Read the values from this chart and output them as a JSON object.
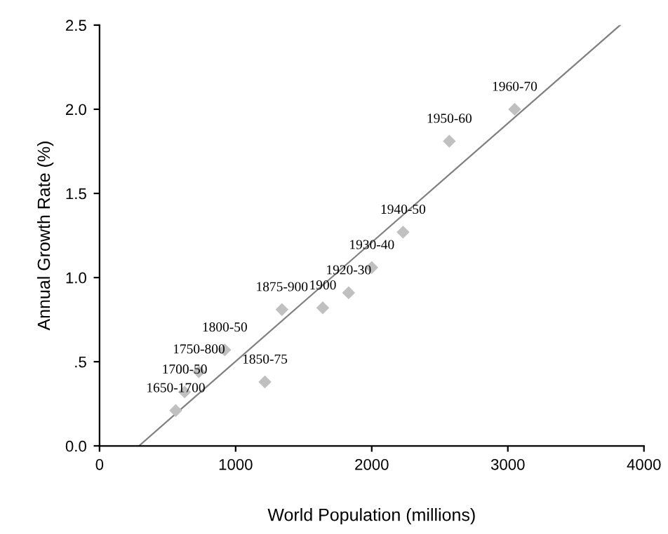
{
  "chart_data": {
    "type": "scatter",
    "xlabel": "World Population (millions)",
    "ylabel": "Annual Growth Rate (%)",
    "xlim": [
      0,
      4000
    ],
    "xticks": [
      0,
      1000,
      2000,
      3000,
      4000
    ],
    "ylim": [
      0,
      2.5
    ],
    "yticks": [
      {
        "value": 0,
        "label": "0.0"
      },
      {
        "value": 0.5,
        "label": ".5"
      },
      {
        "value": 1.0,
        "label": "1.0"
      },
      {
        "value": 1.5,
        "label": "1.5"
      },
      {
        "value": 2.0,
        "label": "2.0"
      },
      {
        "value": 2.5,
        "label": "2.5"
      }
    ],
    "grid": false,
    "series": [
      {
        "color": "#c0c0c0",
        "marker": "diamond",
        "x": [
          560,
          625,
          730,
          920,
          1215,
          1340,
          1640,
          1830,
          2000,
          2230,
          2570,
          3050
        ],
        "values": [
          0.21,
          0.32,
          0.44,
          0.57,
          0.38,
          0.81,
          0.82,
          0.91,
          1.06,
          1.27,
          1.81,
          2.0
        ]
      },
      {
        "type": "line",
        "color": "#808080",
        "marker": "none",
        "line_style": "solid",
        "x": [
          290,
          3825
        ],
        "values": [
          0,
          2.5
        ]
      }
    ],
    "annotations": [
      {
        "text": "1650-1700",
        "x": 560,
        "y": 0.21
      },
      {
        "text": "1700-50",
        "x": 625,
        "y": 0.32
      },
      {
        "text": "1750-800",
        "x": 730,
        "y": 0.44
      },
      {
        "text": "1800-50",
        "x": 920,
        "y": 0.57
      },
      {
        "text": "1850-75",
        "x": 1215,
        "y": 0.38
      },
      {
        "text": "1875-900",
        "x": 1340,
        "y": 0.81
      },
      {
        "text": "1900",
        "x": 1640,
        "y": 0.82
      },
      {
        "text": "1920-30",
        "x": 1830,
        "y": 0.91
      },
      {
        "text": "1930-40",
        "x": 2000,
        "y": 1.06
      },
      {
        "text": "1940-50",
        "x": 2230,
        "y": 1.27
      },
      {
        "text": "1950-60",
        "x": 2570,
        "y": 1.81
      },
      {
        "text": "1960-70",
        "x": 3050,
        "y": 2.0
      }
    ]
  }
}
